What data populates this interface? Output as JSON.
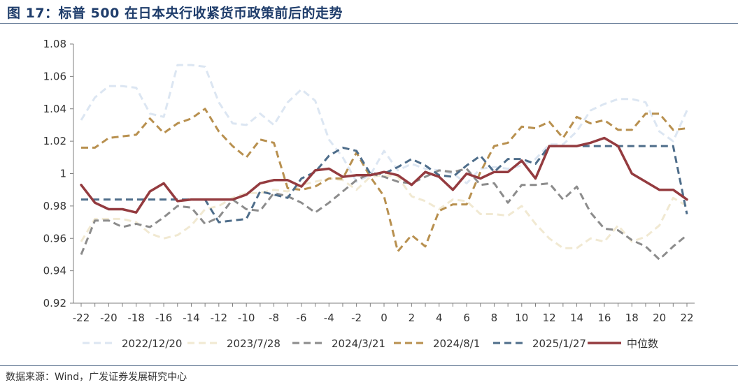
{
  "title": "图 17：标普 500 在日本央行收紧货币政策前后的走势",
  "source": "数据来源：Wind，广发证券发展研究中心",
  "chart_data": {
    "type": "line",
    "x": [
      -22,
      -21,
      -20,
      -19,
      -18,
      -17,
      -16,
      -15,
      -14,
      -13,
      -12,
      -11,
      -10,
      -9,
      -8,
      -7,
      -6,
      -5,
      -4,
      -3,
      -2,
      -1,
      0,
      1,
      2,
      3,
      4,
      5,
      6,
      7,
      8,
      9,
      10,
      11,
      12,
      13,
      14,
      15,
      16,
      17,
      18,
      19,
      20,
      21,
      22
    ],
    "x_ticks": [
      "-22",
      "-20",
      "-18",
      "-16",
      "-14",
      "-12",
      "-10",
      "-8",
      "-6",
      "-4",
      "-2",
      "0",
      "2",
      "4",
      "6",
      "8",
      "10",
      "12",
      "14",
      "16",
      "18",
      "20",
      "22"
    ],
    "xlim": [
      -22,
      22
    ],
    "y_ticks": [
      "1.08",
      "1.06",
      "1.04",
      "1.02",
      "1",
      "0.98",
      "0.96",
      "0.94",
      "0.92"
    ],
    "ylim": [
      0.92,
      1.08
    ],
    "grid": false,
    "legend_position": "bottom",
    "series": [
      {
        "name": "2022/12/20",
        "color": "#dce6f2",
        "dash": true,
        "values": [
          1.033,
          1.047,
          1.054,
          1.054,
          1.053,
          1.037,
          1.035,
          1.067,
          1.067,
          1.066,
          1.044,
          1.031,
          1.03,
          1.037,
          1.03,
          1.044,
          1.052,
          1.045,
          1.021,
          1.01,
          0.995,
          0.999,
          1.014,
          1.002,
          1.006,
          1.003,
          1.002,
          1.0,
          0.994,
          1.003,
          1.004,
          1.003,
          1.005,
          1.009,
          1.018,
          1.018,
          1.026,
          1.039,
          1.043,
          1.046,
          1.046,
          1.044,
          1.026,
          1.02,
          1.039
        ]
      },
      {
        "name": "2023/7/28",
        "color": "#f1e9d2",
        "dash": true,
        "values": [
          0.958,
          0.972,
          0.972,
          0.972,
          0.97,
          0.963,
          0.96,
          0.962,
          0.968,
          0.978,
          0.98,
          0.985,
          0.988,
          0.988,
          0.99,
          0.989,
          0.993,
          0.995,
          0.997,
          0.996,
          0.99,
          0.998,
          0.999,
          0.998,
          0.986,
          0.983,
          0.978,
          0.984,
          0.983,
          0.975,
          0.975,
          0.974,
          0.98,
          0.969,
          0.96,
          0.954,
          0.954,
          0.96,
          0.958,
          0.968,
          0.958,
          0.961,
          0.968,
          0.985,
          0.98
        ]
      },
      {
        "name": "2024/3/21",
        "color": "#8c8c8c",
        "dash": true,
        "values": [
          0.95,
          0.971,
          0.971,
          0.967,
          0.969,
          0.967,
          0.973,
          0.98,
          0.979,
          0.969,
          0.973,
          0.984,
          0.978,
          0.977,
          0.988,
          0.986,
          0.982,
          0.976,
          0.982,
          0.989,
          0.996,
          1.0,
          0.998,
          0.995,
          0.994,
          0.998,
          1.002,
          1.001,
          1.003,
          0.993,
          0.994,
          0.982,
          0.993,
          0.993,
          0.994,
          0.984,
          0.992,
          0.976,
          0.966,
          0.965,
          0.959,
          0.955,
          0.947,
          0.955,
          0.962
        ]
      },
      {
        "name": "2024/8/1",
        "color": "#b8904f",
        "dash": true,
        "values": [
          1.016,
          1.016,
          1.022,
          1.023,
          1.024,
          1.034,
          1.025,
          1.031,
          1.034,
          1.04,
          1.026,
          1.017,
          1.01,
          1.021,
          1.019,
          0.991,
          0.99,
          0.992,
          0.997,
          0.997,
          1.013,
          0.998,
          0.986,
          0.952,
          0.962,
          0.955,
          0.977,
          0.981,
          0.981,
          1.001,
          1.017,
          1.019,
          1.029,
          1.028,
          1.032,
          1.022,
          1.035,
          1.031,
          1.033,
          1.027,
          1.027,
          1.037,
          1.037,
          1.027,
          1.028
        ]
      },
      {
        "name": "2025/1/27",
        "color": "#4e6d8a",
        "dash": true,
        "values": [
          0.984,
          0.984,
          0.984,
          0.984,
          0.984,
          0.984,
          0.984,
          0.984,
          0.984,
          0.984,
          0.97,
          0.971,
          0.972,
          0.989,
          0.987,
          0.985,
          0.997,
          1.001,
          1.011,
          1.016,
          1.014,
          1.0,
          1.0,
          1.004,
          1.009,
          1.005,
          0.999,
          0.998,
          1.005,
          1.011,
          1.001,
          1.009,
          1.009,
          1.006,
          1.017,
          1.017,
          1.017,
          1.017,
          1.017,
          1.017,
          1.017,
          1.017,
          1.017,
          1.017,
          0.975
        ]
      },
      {
        "name": "中位数",
        "color": "#943b3f",
        "dash": false,
        "values": [
          0.993,
          0.982,
          0.978,
          0.978,
          0.976,
          0.989,
          0.994,
          0.983,
          0.984,
          0.984,
          0.984,
          0.984,
          0.987,
          0.994,
          0.996,
          0.996,
          0.992,
          1.002,
          1.003,
          0.998,
          0.999,
          0.999,
          1.001,
          0.999,
          0.993,
          1.001,
          0.998,
          0.99,
          1.0,
          0.997,
          1.001,
          1.001,
          1.008,
          0.997,
          1.017,
          1.017,
          1.017,
          1.019,
          1.022,
          1.017,
          1.0,
          0.995,
          0.99,
          0.99,
          0.984
        ]
      }
    ]
  }
}
